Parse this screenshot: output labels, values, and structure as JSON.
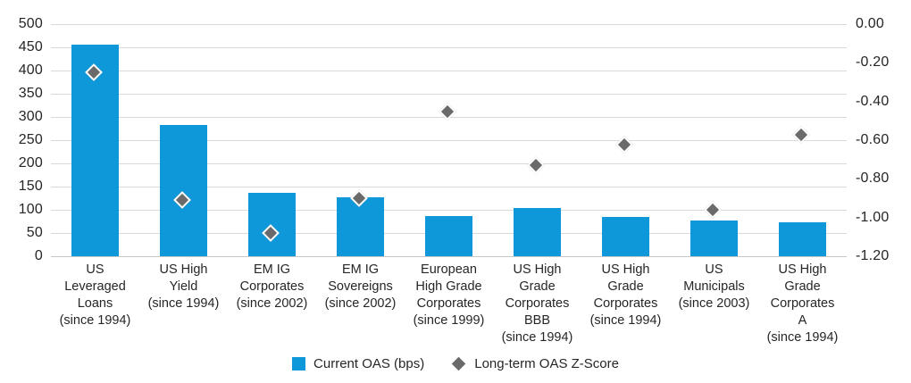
{
  "chart_data": {
    "type": "bar",
    "title": "",
    "categories": [
      "US\nLeveraged\nLoans\n(since 1994)",
      "US High\nYield\n(since 1994)",
      "EM IG\nCorporates\n(since 2002)",
      "EM IG\nSovereigns\n(since 2002)",
      "European\nHigh Grade\nCorporates\n(since 1999)",
      "US High\nGrade\nCorporates\nBBB\n(since 1994)",
      "US High\nGrade\nCorporates\n(since 1994)",
      "US\nMunicipals\n(since 2003)",
      "US High\nGrade\nCorporates\nA\n(since 1994)"
    ],
    "series": [
      {
        "name": "Current OAS (bps)",
        "type": "bar",
        "axis": "left",
        "color": "#0f98d9",
        "values": [
          455,
          283,
          136,
          127,
          87,
          104,
          84,
          77,
          74
        ]
      },
      {
        "name": "Long-term OAS Z-Score",
        "type": "scatter",
        "marker": "diamond",
        "axis": "right",
        "color": "#6a6a6a",
        "values": [
          -0.26,
          -0.92,
          -1.09,
          -0.91,
          -0.46,
          -0.74,
          -0.63,
          -0.97,
          -0.58
        ]
      }
    ],
    "left_axis": {
      "range": [
        0,
        500
      ],
      "step": 50,
      "tick_labels": [
        "500",
        "450",
        "400",
        "350",
        "300",
        "250",
        "200",
        "150",
        "100",
        "50",
        "0"
      ]
    },
    "right_axis": {
      "range": [
        -1.2,
        0
      ],
      "step": 0.2,
      "tick_labels": [
        "0.00",
        "-0.20",
        "-0.40",
        "-0.60",
        "-0.80",
        "-1.00",
        "-1.20"
      ]
    },
    "grid": true,
    "legend_position": "bottom"
  },
  "legend": {
    "items": [
      {
        "label": "Current OAS (bps)",
        "marker": "square",
        "color": "#0f98d9"
      },
      {
        "label": "Long-term OAS Z-Score",
        "marker": "diamond",
        "color": "#6a6a6a"
      }
    ]
  },
  "colors": {
    "bar": "#0f98d9",
    "diamond": "#6a6a6a",
    "gridline": "#d9d9d9",
    "axis_line": "#c6c6c6",
    "text": "#262626",
    "background": "#ffffff"
  }
}
